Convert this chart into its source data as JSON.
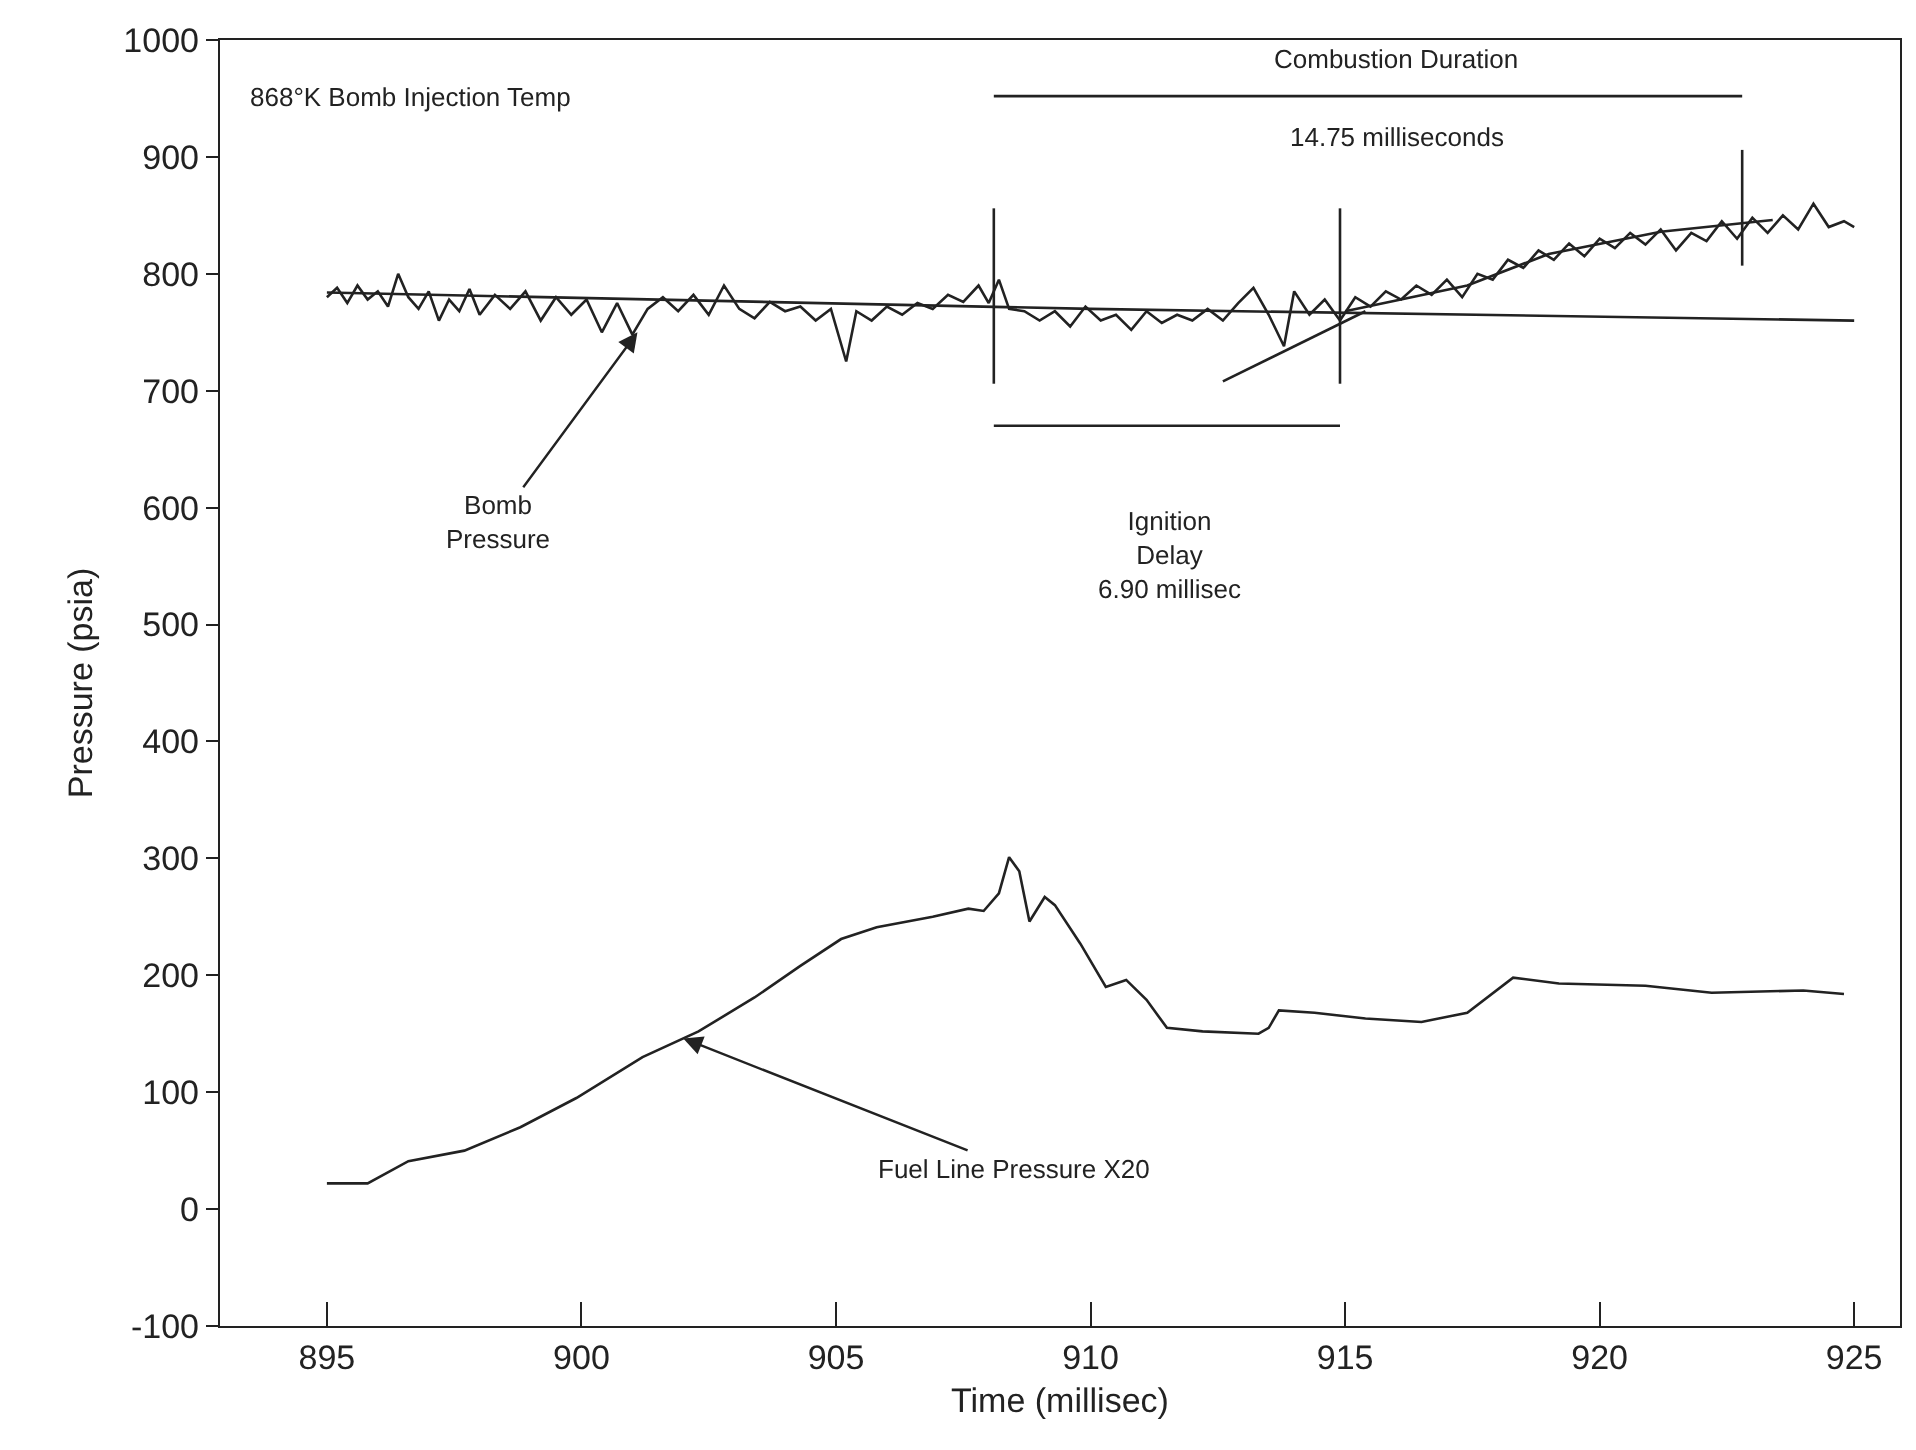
{
  "chart_data": {
    "type": "line",
    "xlabel": "Time (millisec)",
    "ylabel": "Pressure (psia)",
    "xlim": [
      892.9,
      925.9
    ],
    "xticks": [
      895,
      900,
      905,
      910,
      915,
      920,
      925
    ],
    "ylim": [
      -100,
      1000
    ],
    "yticks": [
      -100,
      0,
      100,
      200,
      300,
      400,
      500,
      600,
      700,
      800,
      900,
      1000
    ],
    "marker": "none",
    "line_style": "solid",
    "series": [
      {
        "color": "#222222",
        "x": [
          895.0,
          895.2,
          895.4,
          895.6,
          895.8,
          896.0,
          896.2,
          896.4,
          896.6,
          896.8,
          897.0,
          897.2,
          897.4,
          897.6,
          897.8,
          898.0,
          898.3,
          898.6,
          898.9,
          899.2,
          899.5,
          899.8,
          900.1,
          900.4,
          900.7,
          901.0,
          901.3,
          901.6,
          901.9,
          902.2,
          902.5,
          902.8,
          903.1,
          903.4,
          903.7,
          904.0,
          904.3,
          904.6,
          904.9,
          905.2,
          905.4,
          905.7,
          906.0,
          906.3,
          906.6,
          906.9,
          907.2,
          907.5,
          907.8,
          908.0,
          908.2,
          908.4,
          908.7,
          909.0,
          909.3,
          909.6,
          909.9,
          910.2,
          910.5,
          910.8,
          911.1,
          911.4,
          911.7,
          912.0,
          912.3,
          912.6,
          912.9,
          913.2,
          913.5,
          913.8,
          914.0,
          914.3,
          914.6,
          914.9,
          915.2,
          915.5,
          915.8,
          916.1,
          916.4,
          916.7,
          917.0,
          917.3,
          917.6,
          917.9,
          918.2,
          918.5,
          918.8,
          919.1,
          919.4,
          919.7,
          920.0,
          920.3,
          920.6,
          920.9,
          921.2,
          921.5,
          921.8,
          922.1,
          922.4,
          922.7,
          923.0,
          923.3,
          923.6,
          923.9,
          924.2,
          924.5,
          924.8,
          925.0
        ],
        "values": [
          780,
          788,
          775,
          790,
          778,
          785,
          772,
          800,
          780,
          770,
          785,
          760,
          778,
          768,
          787,
          765,
          782,
          770,
          785,
          760,
          780,
          765,
          778,
          750,
          775,
          748,
          770,
          780,
          768,
          782,
          765,
          790,
          770,
          762,
          776,
          768,
          772,
          760,
          770,
          725,
          768,
          760,
          772,
          765,
          775,
          770,
          782,
          776,
          790,
          775,
          795,
          770,
          768,
          760,
          768,
          755,
          772,
          760,
          765,
          752,
          768,
          758,
          765,
          760,
          770,
          760,
          775,
          788,
          765,
          738,
          785,
          765,
          778,
          760,
          780,
          772,
          785,
          778,
          790,
          782,
          795,
          780,
          800,
          795,
          812,
          805,
          820,
          812,
          826,
          815,
          830,
          822,
          835,
          825,
          838,
          820,
          835,
          828,
          845,
          830,
          848,
          835,
          850,
          838,
          860,
          840,
          845,
          840
        ]
      },
      {
        "color": "#222222",
        "x": [
          895,
          910,
          925
        ],
        "values": [
          784,
          770,
          760
        ]
      },
      {
        "color": "#222222",
        "x": [
          912.6,
          915.4
        ],
        "values": [
          708,
          768
        ]
      },
      {
        "color": "#222222",
        "x": [
          915.0,
          917.4,
          919.0,
          921.2,
          923.4
        ],
        "values": [
          768,
          790,
          817,
          836,
          846
        ]
      },
      {
        "color": "#222222",
        "x": [
          908.1,
          908.1
        ],
        "values": [
          706,
          856
        ]
      },
      {
        "color": "#222222",
        "x": [
          914.9,
          914.9
        ],
        "values": [
          706,
          856
        ]
      },
      {
        "color": "#222222",
        "x": [
          922.8,
          922.8
        ],
        "values": [
          807,
          906
        ]
      },
      {
        "color": "#222222",
        "x": [
          908.1,
          922.8
        ],
        "values": [
          952,
          952
        ]
      },
      {
        "color": "#222222",
        "x": [
          908.1,
          914.9
        ],
        "values": [
          670,
          670
        ]
      },
      {
        "color": "#222222",
        "x": [
          895.0,
          895.8,
          896.6,
          897.7,
          898.8,
          899.9,
          901.2,
          902.3,
          903.4,
          904.3,
          905.1,
          905.8,
          906.9,
          907.6,
          907.9,
          908.2,
          908.4,
          908.6,
          908.8,
          909.1,
          909.3,
          909.8,
          910.3,
          910.7,
          911.1,
          911.5,
          912.2,
          913.3,
          913.5,
          913.7,
          914.4,
          915.4,
          916.5,
          917.4,
          918.3,
          919.2,
          920.9,
          922.2,
          924.0,
          924.8
        ],
        "values": [
          22,
          22,
          41,
          50,
          70,
          95,
          130,
          152,
          181,
          208,
          231,
          241,
          250,
          257,
          255,
          270,
          301,
          289,
          246,
          267,
          260,
          227,
          190,
          196,
          179,
          155,
          152,
          150,
          155,
          170,
          168,
          163,
          160,
          168,
          198,
          193,
          191,
          185,
          187,
          184
        ]
      }
    ],
    "annotations": [
      "868°K Bomb Injection Temp",
      "Combustion Duration",
      "14.75 milliseconds",
      "Ignition\nDelay\n6.90 millisec",
      {
        "text": "Bomb\nPressure",
        "x": 901.1,
        "y": 750
      },
      {
        "text": "Fuel Line Pressure X20",
        "x": 902.0,
        "y": 146
      }
    ]
  }
}
